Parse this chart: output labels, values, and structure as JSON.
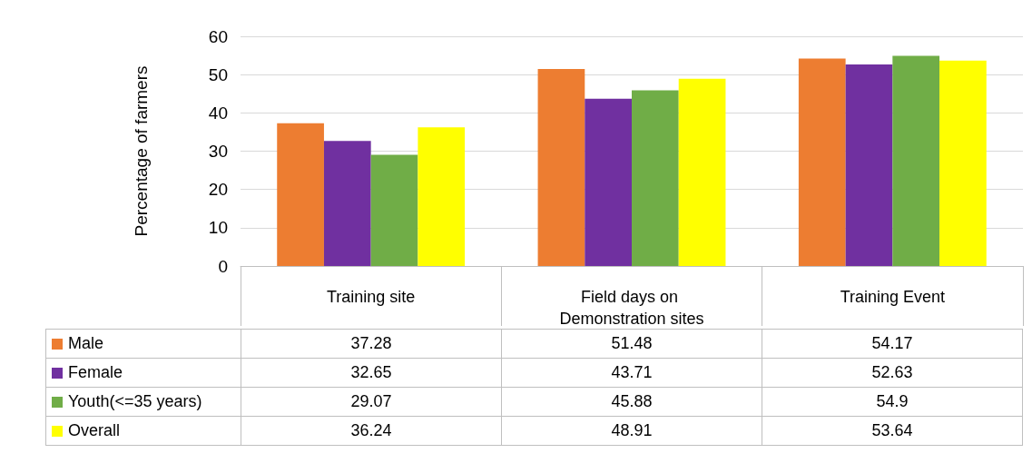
{
  "chart_data": {
    "type": "bar",
    "ylabel": "Percentage of farmers",
    "categories": [
      "Training site",
      "Field days on Demonstration sites",
      "Training Event"
    ],
    "series": [
      {
        "name": "Male",
        "color": "#ed7d31",
        "values": [
          37.28,
          51.48,
          54.17
        ]
      },
      {
        "name": "Female",
        "color": "#7030a0",
        "values": [
          32.65,
          43.71,
          52.63
        ]
      },
      {
        "name": "Youth(<=35 years)",
        "color": "#70ad47",
        "values": [
          29.07,
          45.88,
          54.9
        ]
      },
      {
        "name": "Overall",
        "color": "#ffff00",
        "values": [
          36.24,
          48.91,
          53.64
        ]
      }
    ],
    "ylim": [
      0,
      60
    ],
    "yticks": [
      0,
      10,
      20,
      30,
      40,
      50,
      60
    ],
    "grid": "y",
    "legend": "bottom left",
    "data_labels": true
  }
}
